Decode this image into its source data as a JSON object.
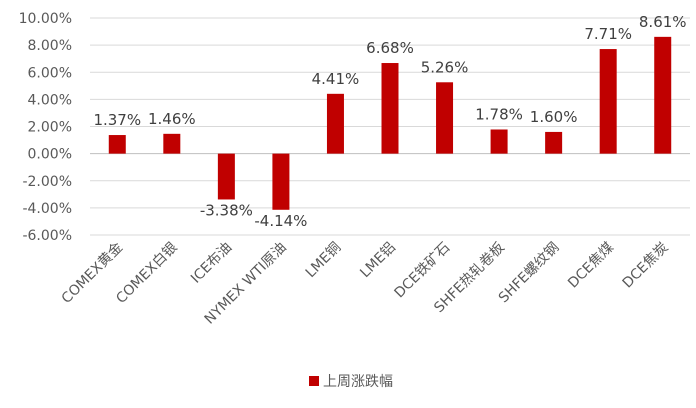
{
  "chart_data": {
    "type": "bar",
    "categories": [
      "COMEX黄金",
      "COMEX白银",
      "ICE布油",
      "NYMEX WTI原油",
      "LME铜",
      "LME铝",
      "DCE铁矿石",
      "SHFE热轧卷板",
      "SHFE螺纹钢",
      "DCE焦煤",
      "DCE焦炭"
    ],
    "series": [
      {
        "name": "上周涨跌幅",
        "values": [
          1.37,
          1.46,
          -3.38,
          -4.14,
          4.41,
          6.68,
          5.26,
          1.78,
          1.6,
          7.71,
          8.61
        ],
        "data_labels": [
          "1.37%",
          "1.46%",
          "-3.38%",
          "-4.14%",
          "4.41%",
          "6.68%",
          "5.26%",
          "1.78%",
          "1.60%",
          "7.71%",
          "8.61%"
        ]
      }
    ],
    "y_ticks": [
      10,
      8,
      6,
      4,
      2,
      0,
      -2,
      -4,
      -6
    ],
    "y_tick_labels": [
      "10.00%",
      "8.00%",
      "6.00%",
      "4.00%",
      "2.00%",
      "0.00%",
      "-2.00%",
      "-4.00%",
      "-6.00%"
    ],
    "ylim": [
      -6,
      10
    ],
    "grid": true,
    "legend_position": "bottom",
    "bar_color": "#c00000"
  }
}
